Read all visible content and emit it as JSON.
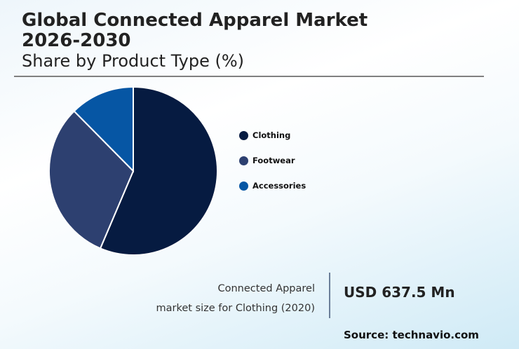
{
  "header": {
    "title_line1": "Global Connected Apparel Market",
    "title_line2": "2026-2030",
    "subtitle": "Share by Product Type (%)"
  },
  "legend": {
    "items": [
      {
        "label": "Clothing",
        "color": "#061b41"
      },
      {
        "label": "Footwear",
        "color": "#2d4070"
      },
      {
        "label": "Accessories",
        "color": "#0656a4"
      }
    ]
  },
  "callout": {
    "caption_line1": "Connected Apparel",
    "caption_line2": "market size for Clothing (2020)",
    "value": "USD 637.5 Mn"
  },
  "footer": {
    "source": "Source: technavio.com"
  },
  "chart_data": {
    "type": "pie",
    "title": "Global Connected Apparel Market 2026-2030",
    "subtitle": "Share by Product Type (%)",
    "categories": [
      "Clothing",
      "Footwear",
      "Accessories"
    ],
    "values": [
      56.4,
      31.2,
      12.4
    ],
    "colors": [
      "#061b41",
      "#2d4070",
      "#0656a4"
    ],
    "start_angle": "12 o'clock, clockwise",
    "legend_position": "right"
  }
}
